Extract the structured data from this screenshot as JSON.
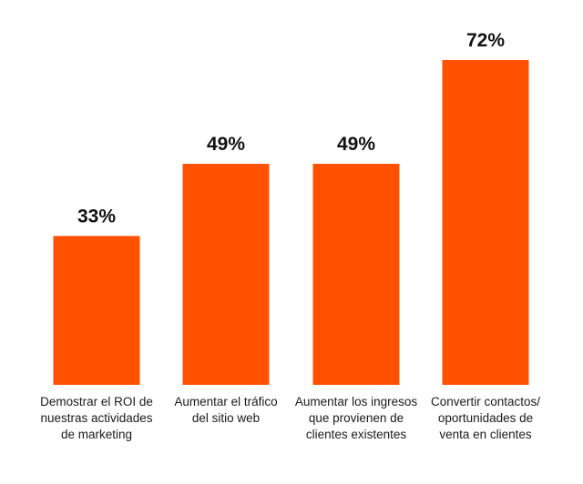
{
  "chart_data": {
    "type": "bar",
    "categories": [
      [
        "Demostrar el ROI de",
        "nuestras actividades",
        "de marketing"
      ],
      [
        "Aumentar el tráfico",
        "del sitio web"
      ],
      [
        "Aumentar los ingresos",
        "que provienen de",
        "clientes existentes"
      ],
      [
        "Convertir contactos/",
        "oportunidades de",
        "venta en clientes"
      ]
    ],
    "values": [
      33,
      49,
      49,
      72
    ],
    "value_labels": [
      "33%",
      "49%",
      "49%",
      "72%"
    ],
    "ylim": [
      0,
      72
    ],
    "grid": false,
    "legend": "none",
    "bar_color": "#FF5100"
  }
}
